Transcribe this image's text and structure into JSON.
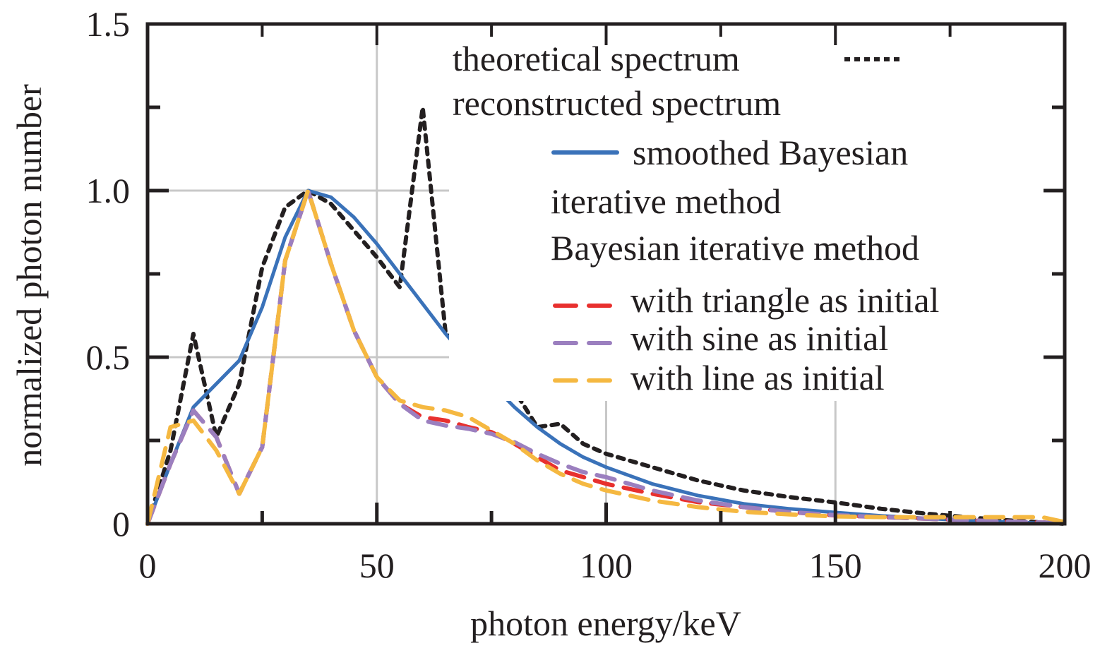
{
  "chart_data": {
    "type": "line",
    "title": "",
    "xlabel": "photon energy/keV",
    "ylabel": "normalized photon number",
    "xlim": [
      0,
      200
    ],
    "ylim": [
      0,
      1.5
    ],
    "xticks": [
      0,
      50,
      100,
      150,
      200
    ],
    "xtick_labels": [
      "0",
      "50",
      "100",
      "150",
      "200"
    ],
    "yticks": [
      0,
      0.5,
      1.0,
      1.5
    ],
    "ytick_labels": [
      "0",
      "0.5",
      "1.0",
      "1.5"
    ],
    "minor_x_step": 25,
    "minor_y_step": 0.25,
    "grid": true,
    "legend_position": "top-right",
    "legend": {
      "header1": "theoretical spectrum",
      "header2": "reconstructed spectrum",
      "smoothed_line1": "smoothed Bayesian",
      "smoothed_line2": "iterative method",
      "bayes_header": "Bayesian iterative method",
      "triangle": "with triangle as initial",
      "sine": "with sine as initial",
      "line": "with line as initial"
    },
    "series": [
      {
        "name": "theoretical spectrum",
        "color": "#231f20",
        "style": "dotted",
        "x": [
          0,
          5,
          10,
          15,
          20,
          25,
          30,
          35,
          40,
          45,
          50,
          55,
          60,
          65,
          70,
          75,
          80,
          85,
          90,
          95,
          100,
          110,
          120,
          130,
          140,
          150,
          160,
          170,
          180,
          190,
          200
        ],
        "y": [
          0,
          0.22,
          0.57,
          0.26,
          0.42,
          0.77,
          0.95,
          1.0,
          0.96,
          0.88,
          0.8,
          0.71,
          1.25,
          0.57,
          0.53,
          0.4,
          0.4,
          0.29,
          0.3,
          0.24,
          0.21,
          0.17,
          0.13,
          0.1,
          0.08,
          0.064,
          0.045,
          0.03,
          0.018,
          0.008,
          0.0
        ]
      },
      {
        "name": "smoothed Bayesian iterative method",
        "color": "#3a72b9",
        "style": "solid",
        "x": [
          0,
          5,
          10,
          15,
          20,
          25,
          30,
          35,
          40,
          45,
          50,
          55,
          60,
          65,
          70,
          75,
          80,
          85,
          90,
          95,
          100,
          110,
          120,
          130,
          140,
          150,
          160,
          170,
          180,
          190,
          200
        ],
        "y": [
          0,
          0.18,
          0.35,
          0.42,
          0.49,
          0.65,
          0.86,
          1.0,
          0.98,
          0.92,
          0.84,
          0.75,
          0.66,
          0.57,
          0.49,
          0.42,
          0.35,
          0.29,
          0.24,
          0.2,
          0.17,
          0.12,
          0.085,
          0.06,
          0.045,
          0.034,
          0.024,
          0.016,
          0.009,
          0.004,
          0.0
        ]
      },
      {
        "name": "with triangle as initial",
        "color": "#e8302e",
        "style": "dashed",
        "x": [
          0,
          5,
          10,
          15,
          20,
          25,
          30,
          35,
          40,
          45,
          50,
          55,
          60,
          65,
          70,
          75,
          80,
          85,
          90,
          95,
          100,
          110,
          120,
          130,
          140,
          150,
          160,
          170,
          180,
          190,
          200
        ],
        "y": [
          0,
          0.18,
          0.34,
          0.26,
          0.09,
          0.23,
          0.79,
          1.0,
          0.78,
          0.58,
          0.44,
          0.36,
          0.32,
          0.31,
          0.29,
          0.275,
          0.24,
          0.2,
          0.16,
          0.14,
          0.12,
          0.09,
          0.065,
          0.05,
          0.035,
          0.025,
          0.02,
          0.015,
          0.01,
          0.006,
          0.002
        ]
      },
      {
        "name": "with sine as initial",
        "color": "#9b7fbf",
        "style": "dashed",
        "x": [
          0,
          5,
          10,
          15,
          20,
          25,
          30,
          35,
          40,
          45,
          50,
          55,
          60,
          65,
          70,
          75,
          80,
          85,
          90,
          95,
          100,
          110,
          120,
          130,
          140,
          150,
          160,
          170,
          180,
          190,
          200
        ],
        "y": [
          0,
          0.18,
          0.34,
          0.26,
          0.09,
          0.23,
          0.79,
          1.0,
          0.78,
          0.58,
          0.44,
          0.36,
          0.31,
          0.295,
          0.285,
          0.27,
          0.245,
          0.21,
          0.18,
          0.155,
          0.14,
          0.1,
          0.07,
          0.05,
          0.035,
          0.026,
          0.02,
          0.015,
          0.01,
          0.006,
          0.002
        ]
      },
      {
        "name": "with line as initial",
        "color": "#f5b841",
        "style": "dashed",
        "x": [
          0,
          5,
          10,
          15,
          20,
          25,
          30,
          35,
          40,
          45,
          50,
          55,
          60,
          65,
          70,
          75,
          80,
          85,
          90,
          95,
          100,
          110,
          120,
          130,
          140,
          150,
          160,
          170,
          180,
          190,
          195,
          200
        ],
        "y": [
          0,
          0.29,
          0.31,
          0.22,
          0.09,
          0.23,
          0.79,
          1.0,
          0.78,
          0.58,
          0.44,
          0.37,
          0.35,
          0.34,
          0.32,
          0.28,
          0.24,
          0.19,
          0.15,
          0.12,
          0.1,
          0.07,
          0.05,
          0.036,
          0.028,
          0.022,
          0.02,
          0.02,
          0.02,
          0.02,
          0.02,
          0.005
        ]
      }
    ]
  }
}
